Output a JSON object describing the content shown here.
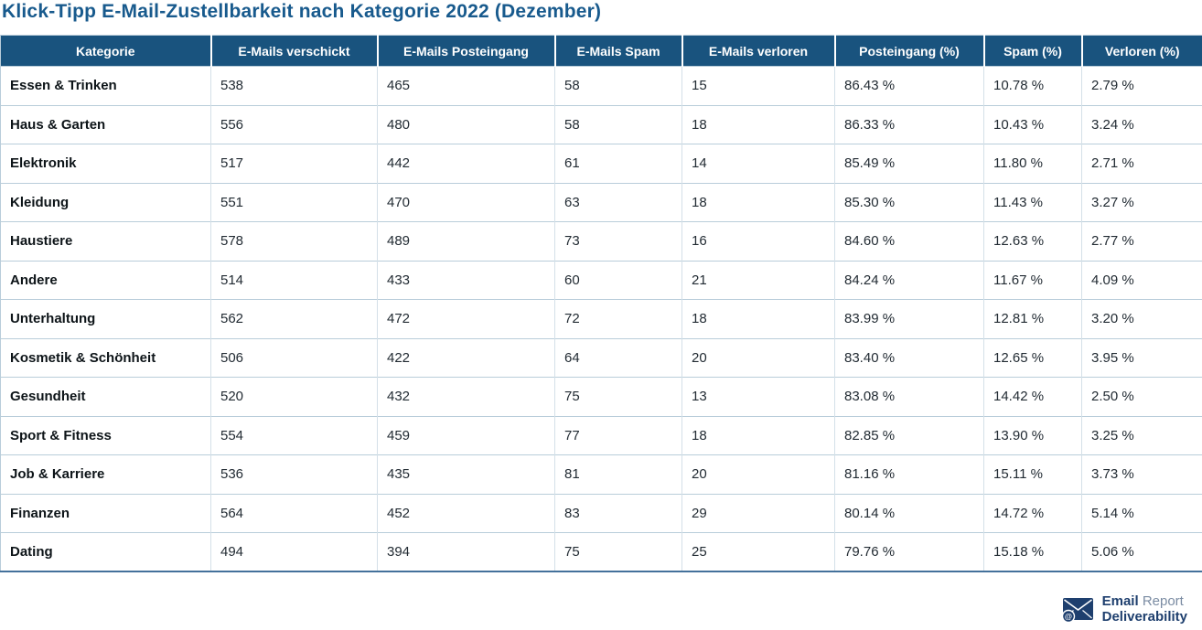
{
  "title": "Klick-Tipp E-Mail-Zustellbarkeit nach Kategorie 2022 (Dezember)",
  "colors": {
    "header_bg": "#19537E",
    "title": "#185A8D",
    "brand": "#1E3F6E"
  },
  "footer": {
    "brand_bold": "Email",
    "brand_light": "Report",
    "brand_line2": "Deliverability",
    "icon": "envelope-at-icon"
  },
  "chart_data": {
    "type": "table",
    "title": "Klick-Tipp E-Mail-Zustellbarkeit nach Kategorie 2022 (Dezember)",
    "columns": [
      "Kategorie",
      "E-Mails verschickt",
      "E-Mails Posteingang",
      "E-Mails Spam",
      "E-Mails verloren",
      "Posteingang (%)",
      "Spam (%)",
      "Verloren (%)"
    ],
    "rows": [
      [
        "Essen & Trinken",
        "538",
        "465",
        "58",
        "15",
        "86.43 %",
        "10.78 %",
        "2.79 %"
      ],
      [
        "Haus & Garten",
        "556",
        "480",
        "58",
        "18",
        "86.33 %",
        "10.43 %",
        "3.24 %"
      ],
      [
        "Elektronik",
        "517",
        "442",
        "61",
        "14",
        "85.49 %",
        "11.80 %",
        "2.71 %"
      ],
      [
        "Kleidung",
        "551",
        "470",
        "63",
        "18",
        "85.30 %",
        "11.43 %",
        "3.27 %"
      ],
      [
        "Haustiere",
        "578",
        "489",
        "73",
        "16",
        "84.60 %",
        "12.63 %",
        "2.77 %"
      ],
      [
        "Andere",
        "514",
        "433",
        "60",
        "21",
        "84.24 %",
        "11.67 %",
        "4.09 %"
      ],
      [
        "Unterhaltung",
        "562",
        "472",
        "72",
        "18",
        "83.99 %",
        "12.81 %",
        "3.20 %"
      ],
      [
        "Kosmetik & Schönheit",
        "506",
        "422",
        "64",
        "20",
        "83.40 %",
        "12.65 %",
        "3.95 %"
      ],
      [
        "Gesundheit",
        "520",
        "432",
        "75",
        "13",
        "83.08 %",
        "14.42 %",
        "2.50 %"
      ],
      [
        "Sport & Fitness",
        "554",
        "459",
        "77",
        "18",
        "82.85 %",
        "13.90 %",
        "3.25 %"
      ],
      [
        "Job & Karriere",
        "536",
        "435",
        "81",
        "20",
        "81.16 %",
        "15.11 %",
        "3.73 %"
      ],
      [
        "Finanzen",
        "564",
        "452",
        "83",
        "29",
        "80.14 %",
        "14.72 %",
        "5.14 %"
      ],
      [
        "Dating",
        "494",
        "394",
        "75",
        "25",
        "79.76 %",
        "15.18 %",
        "5.06 %"
      ]
    ]
  }
}
